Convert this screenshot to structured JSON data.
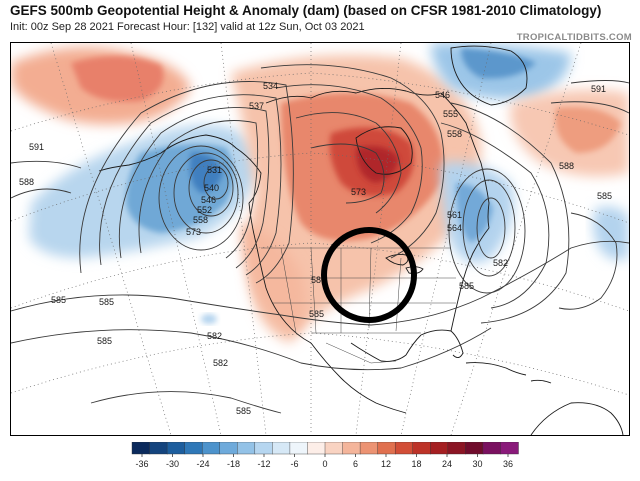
{
  "header": {
    "title": "GEFS 500mb Geopotential Height & Anomaly (dam) (based on CFSR 1981-2010 Climatology)",
    "subtitle": "Init: 00z Sep 28 2021   Forecast Hour: [132]   valid at 12z Sun, Oct 03 2021",
    "brand": "TROPICALTIDBITS.COM"
  },
  "map": {
    "contour_labels": [
      {
        "text": "591"
      },
      {
        "text": "588"
      },
      {
        "text": "531"
      },
      {
        "text": "540"
      },
      {
        "text": "546"
      },
      {
        "text": "552"
      },
      {
        "text": "558"
      },
      {
        "text": "573"
      },
      {
        "text": "585"
      },
      {
        "text": "582"
      },
      {
        "text": "534"
      },
      {
        "text": "537"
      },
      {
        "text": "546"
      },
      {
        "text": "555"
      },
      {
        "text": "558"
      },
      {
        "text": "573"
      },
      {
        "text": "58"
      },
      {
        "text": "585"
      },
      {
        "text": "561"
      },
      {
        "text": "564"
      },
      {
        "text": "582"
      },
      {
        "text": "585"
      },
      {
        "text": "591"
      },
      {
        "text": "588"
      },
      {
        "text": "585"
      },
      {
        "text": "585"
      },
      {
        "text": "585"
      },
      {
        "text": "582"
      },
      {
        "text": "585"
      }
    ],
    "highlight": "circle-over-central-us"
  },
  "colorbar": {
    "ticks": [
      "-36",
      "-30",
      "-24",
      "-18",
      "-12",
      "-6",
      "0",
      "6",
      "12",
      "18",
      "24",
      "30",
      "36"
    ],
    "colors": [
      "#0b2a5c",
      "#14447e",
      "#1d5e9e",
      "#2f78b8",
      "#4d93cc",
      "#6eaadb",
      "#93c2e7",
      "#b6d6f0",
      "#d6e8f6",
      "#eef5fb",
      "#fdeee8",
      "#f9d3c2",
      "#f4b59b",
      "#ec9373",
      "#e0704f",
      "#d24e37",
      "#bd3328",
      "#a51f22",
      "#8b1524",
      "#700c2c",
      "#7a1060",
      "#8a1a7a"
    ],
    "anomaly_unit": "dam"
  }
}
